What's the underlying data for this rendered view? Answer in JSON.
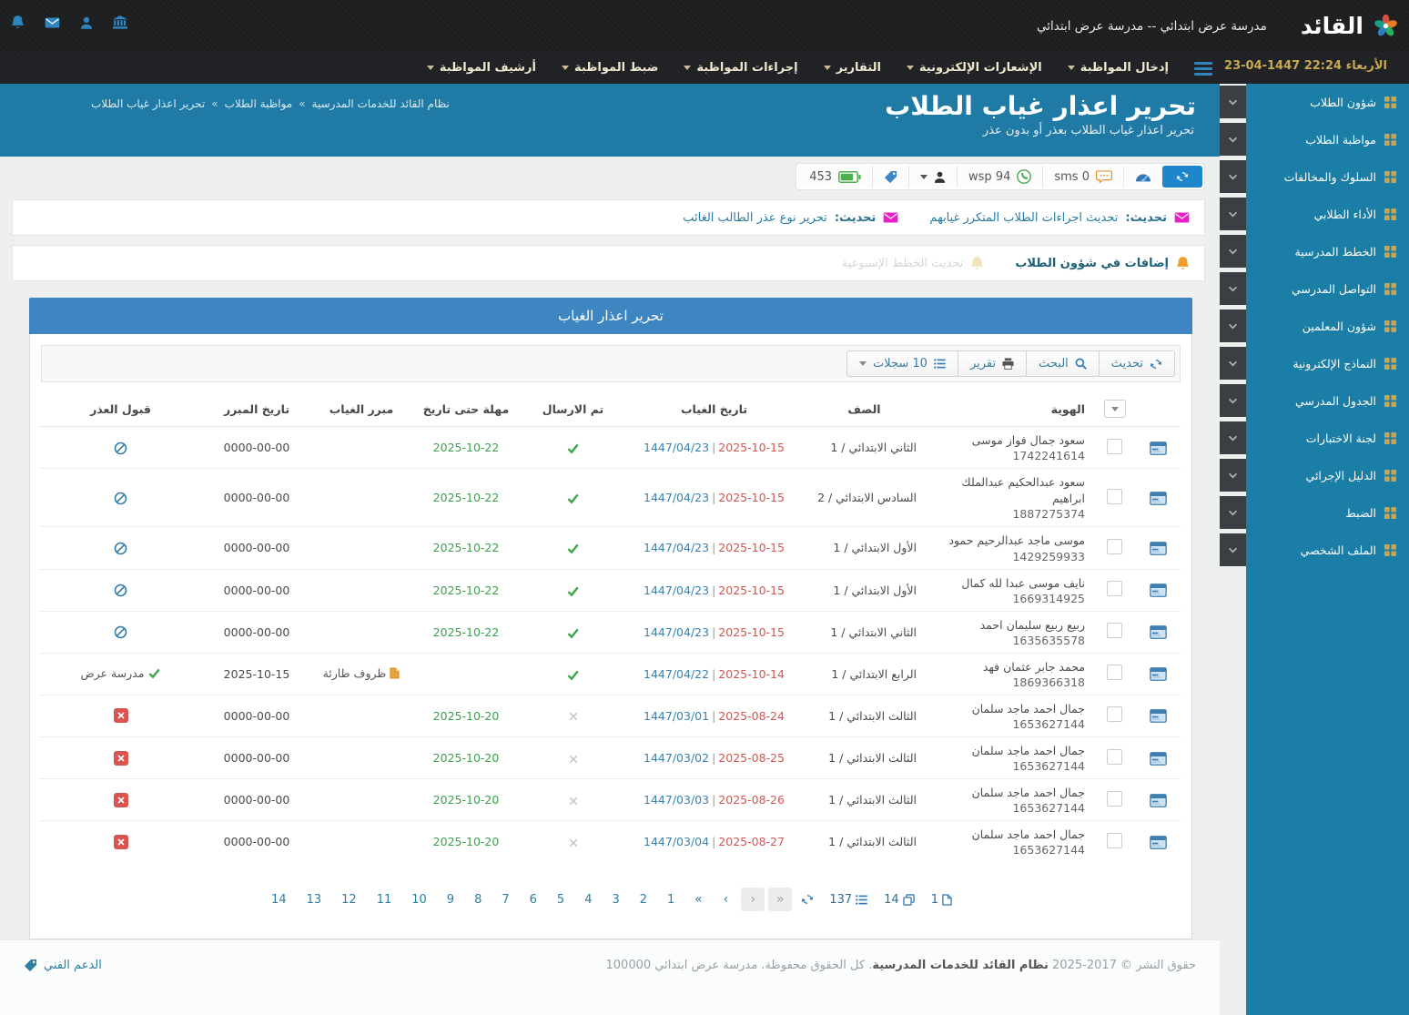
{
  "topbar": {
    "brand": "القائد",
    "school_title": "مدرسة عرض ابتدائي -- مدرسة عرض ابتدائي",
    "datetime": "23-04-1447 22:24 الأربعاء",
    "nav_items": [
      "إدخال المواظبة",
      "الإشعارات الإلكترونية",
      "التقارير",
      "إجراءات المواظبة",
      "ضبط المواظبة",
      "أرشيف المواظبة"
    ]
  },
  "sidebar": {
    "items": [
      "شؤون الطلاب",
      "مواظبة الطلاب",
      "السلوك والمخالفات",
      "الأداء الطلابي",
      "الخطط المدرسية",
      "التواصل المدرسي",
      "شؤون المعلمين",
      "النماذج الإلكترونية",
      "الجدول المدرسي",
      "لجنة الاختبارات",
      "الدليل الإجرائي",
      "الضبط",
      "الملف الشخصي"
    ]
  },
  "page_header": {
    "title": "تحرير اعذار غياب الطلاب",
    "subtitle": "تحرير اعذار غياب الطلاب بعذر أو بدون عذر",
    "breadcrumb": [
      "نظام القائد للخدمات المدرسية",
      "مواظبة الطلاب",
      "تحرير اعذار غياب الطلاب"
    ],
    "breadcrumb_separator": "»"
  },
  "quickbar": {
    "battery_count": "453",
    "wsp_label": "wsp 94",
    "sms_label": "sms 0"
  },
  "notices": {
    "updates": [
      {
        "prefix": "تحديث:",
        "text": "تحديث اجراءات الطلاب المتكرر غيابهم"
      },
      {
        "prefix": "تحديث:",
        "text": "تحرير نوع عذر الطالب الغائب"
      }
    ],
    "additions": [
      {
        "text": "إضافات في شؤون الطلاب",
        "muted": false
      },
      {
        "text": "تحديث الخطط الإسبوعية",
        "muted": true
      }
    ]
  },
  "panel": {
    "title": "تحرير اعذار الغياب",
    "toolbar": {
      "refresh_label": "تحديث",
      "search_label": "البحث",
      "report_label": "تقرير",
      "records_label": "10 سجلات"
    },
    "table": {
      "columns": [
        "الهوية",
        "الصف",
        "تاريخ الغياب",
        "تم الارسال",
        "مهلة حتى تاريخ",
        "مبرر الغياب",
        "تاريخ المبرر",
        "قبول العذر"
      ],
      "rows": [
        {
          "name": "سعود جمال فواز موسى",
          "id": "1742241614",
          "grade": "الثاني الابتدائي / 1",
          "hijri": "1447/04/23",
          "greg": "2025-10-15",
          "sent": true,
          "deadline": "2025-10-22",
          "reason": "",
          "reason_date": "0000-00-00",
          "approval": "pending",
          "approval_text": ""
        },
        {
          "name": "سعود عبدالحكيم عبدالملك ابراهيم",
          "id": "1887275374",
          "grade": "السادس الابتدائي / 2",
          "hijri": "1447/04/23",
          "greg": "2025-10-15",
          "sent": true,
          "deadline": "2025-10-22",
          "reason": "",
          "reason_date": "0000-00-00",
          "approval": "pending",
          "approval_text": ""
        },
        {
          "name": "موسى ماجد عبدالرحيم حمود",
          "id": "1429259933",
          "grade": "الأول الابتدائي / 1",
          "hijri": "1447/04/23",
          "greg": "2025-10-15",
          "sent": true,
          "deadline": "2025-10-22",
          "reason": "",
          "reason_date": "0000-00-00",
          "approval": "pending",
          "approval_text": ""
        },
        {
          "name": "نايف موسى عبدا لله كمال",
          "id": "1669314925",
          "grade": "الأول الابتدائي / 1",
          "hijri": "1447/04/23",
          "greg": "2025-10-15",
          "sent": true,
          "deadline": "2025-10-22",
          "reason": "",
          "reason_date": "0000-00-00",
          "approval": "pending",
          "approval_text": ""
        },
        {
          "name": "ربيع ربيع سليمان احمد",
          "id": "1635635578",
          "grade": "الثاني الابتدائي / 1",
          "hijri": "1447/04/23",
          "greg": "2025-10-15",
          "sent": true,
          "deadline": "2025-10-22",
          "reason": "",
          "reason_date": "0000-00-00",
          "approval": "pending",
          "approval_text": ""
        },
        {
          "name": "محمد جابر عثمان فهد",
          "id": "1869366318",
          "grade": "الرابع الابتدائي / 1",
          "hijri": "1447/04/22",
          "greg": "2025-10-14",
          "sent": true,
          "deadline": "",
          "reason": "ظروف طارئة",
          "reason_date": "2025-10-15",
          "approval": "approved",
          "approval_text": "مدرسة عرض"
        },
        {
          "name": "جمال احمد ماجد سلمان",
          "id": "1653627144",
          "grade": "الثالث الابتدائي / 1",
          "hijri": "1447/03/01",
          "greg": "2025-08-24",
          "sent": false,
          "deadline": "2025-10-20",
          "reason": "",
          "reason_date": "0000-00-00",
          "approval": "rejected",
          "approval_text": ""
        },
        {
          "name": "جمال احمد ماجد سلمان",
          "id": "1653627144",
          "grade": "الثالث الابتدائي / 1",
          "hijri": "1447/03/02",
          "greg": "2025-08-25",
          "sent": false,
          "deadline": "2025-10-20",
          "reason": "",
          "reason_date": "0000-00-00",
          "approval": "rejected",
          "approval_text": ""
        },
        {
          "name": "جمال احمد ماجد سلمان",
          "id": "1653627144",
          "grade": "الثالث الابتدائي / 1",
          "hijri": "1447/03/03",
          "greg": "2025-08-26",
          "sent": false,
          "deadline": "2025-10-20",
          "reason": "",
          "reason_date": "0000-00-00",
          "approval": "rejected",
          "approval_text": ""
        },
        {
          "name": "جمال احمد ماجد سلمان",
          "id": "1653627144",
          "grade": "الثالث الابتدائي / 1",
          "hijri": "1447/03/04",
          "greg": "2025-08-27",
          "sent": false,
          "deadline": "2025-10-20",
          "reason": "",
          "reason_date": "0000-00-00",
          "approval": "rejected",
          "approval_text": ""
        }
      ]
    },
    "pagination": {
      "current_page": "1",
      "total_pages": "14",
      "total_records": "137",
      "nav": [
        {
          "sym": "»",
          "boxed": true
        },
        {
          "sym": "›",
          "boxed": true
        },
        {
          "sym": "‹",
          "boxed": false
        },
        {
          "sym": "«",
          "boxed": false
        }
      ],
      "pages": [
        "1",
        "2",
        "3",
        "4",
        "5",
        "6",
        "7",
        "8",
        "9",
        "10",
        "11",
        "12",
        "13",
        "14"
      ]
    }
  },
  "footer": {
    "copyright_prefix": "حقوق النشر © 2017-2025 ",
    "copyright_brand": "نظام القائد للخدمات المدرسية",
    "copyright_suffix": ". كل الحقوق محفوظة. مدرسة عرض ابتدائي 100000",
    "support_label": "الدعم الفني"
  },
  "colors": {
    "topbar_dark": "#1d1e20",
    "sidebar_teal": "#1a7ea6",
    "header_band_blue": "#1f7ba6",
    "panel_header_blue": "#3e86c2",
    "gold_accent": "#c8a851",
    "magenta_envelope": "#e91fc6",
    "green_ok": "#3fa54a",
    "red_reject": "#d9534f",
    "link_blue": "#337ab7"
  }
}
